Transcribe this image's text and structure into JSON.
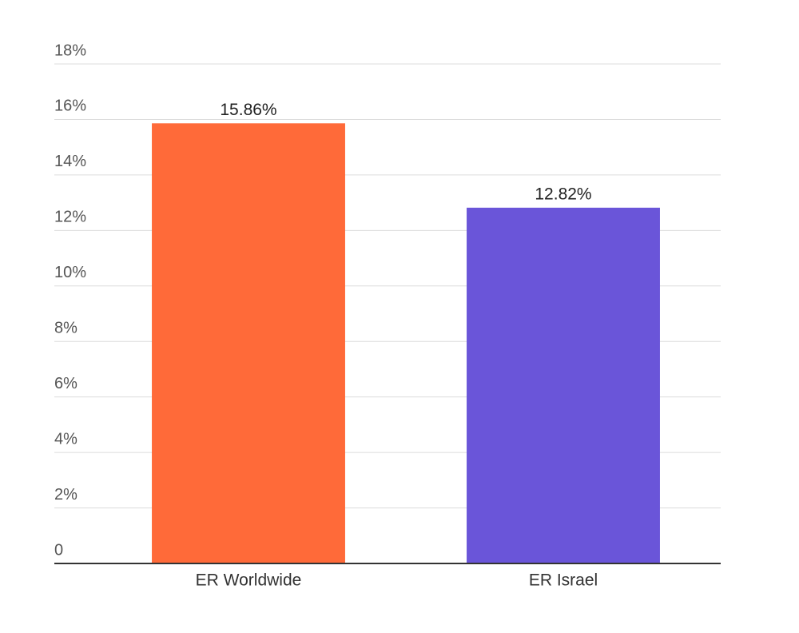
{
  "chart_data": {
    "type": "bar",
    "categories": [
      "ER Worldwide",
      "ER Israel"
    ],
    "values": [
      15.86,
      12.82
    ],
    "value_labels": [
      "15.86%",
      "12.82%"
    ],
    "colors": [
      "#ff6a39",
      "#6a55d9"
    ],
    "ylim": [
      0,
      18
    ],
    "yticks": [
      0,
      {
        "value": 2,
        "label": "2%"
      },
      {
        "value": 4,
        "label": "4%"
      },
      {
        "value": 6,
        "label": "6%"
      },
      {
        "value": 8,
        "label": "8%"
      },
      {
        "value": 10,
        "label": "10%"
      },
      {
        "value": 12,
        "label": "12%"
      },
      {
        "value": 14,
        "label": "14%"
      },
      {
        "value": 16,
        "label": "16%"
      },
      {
        "value": 18,
        "label": "18%"
      }
    ],
    "grid": true
  }
}
